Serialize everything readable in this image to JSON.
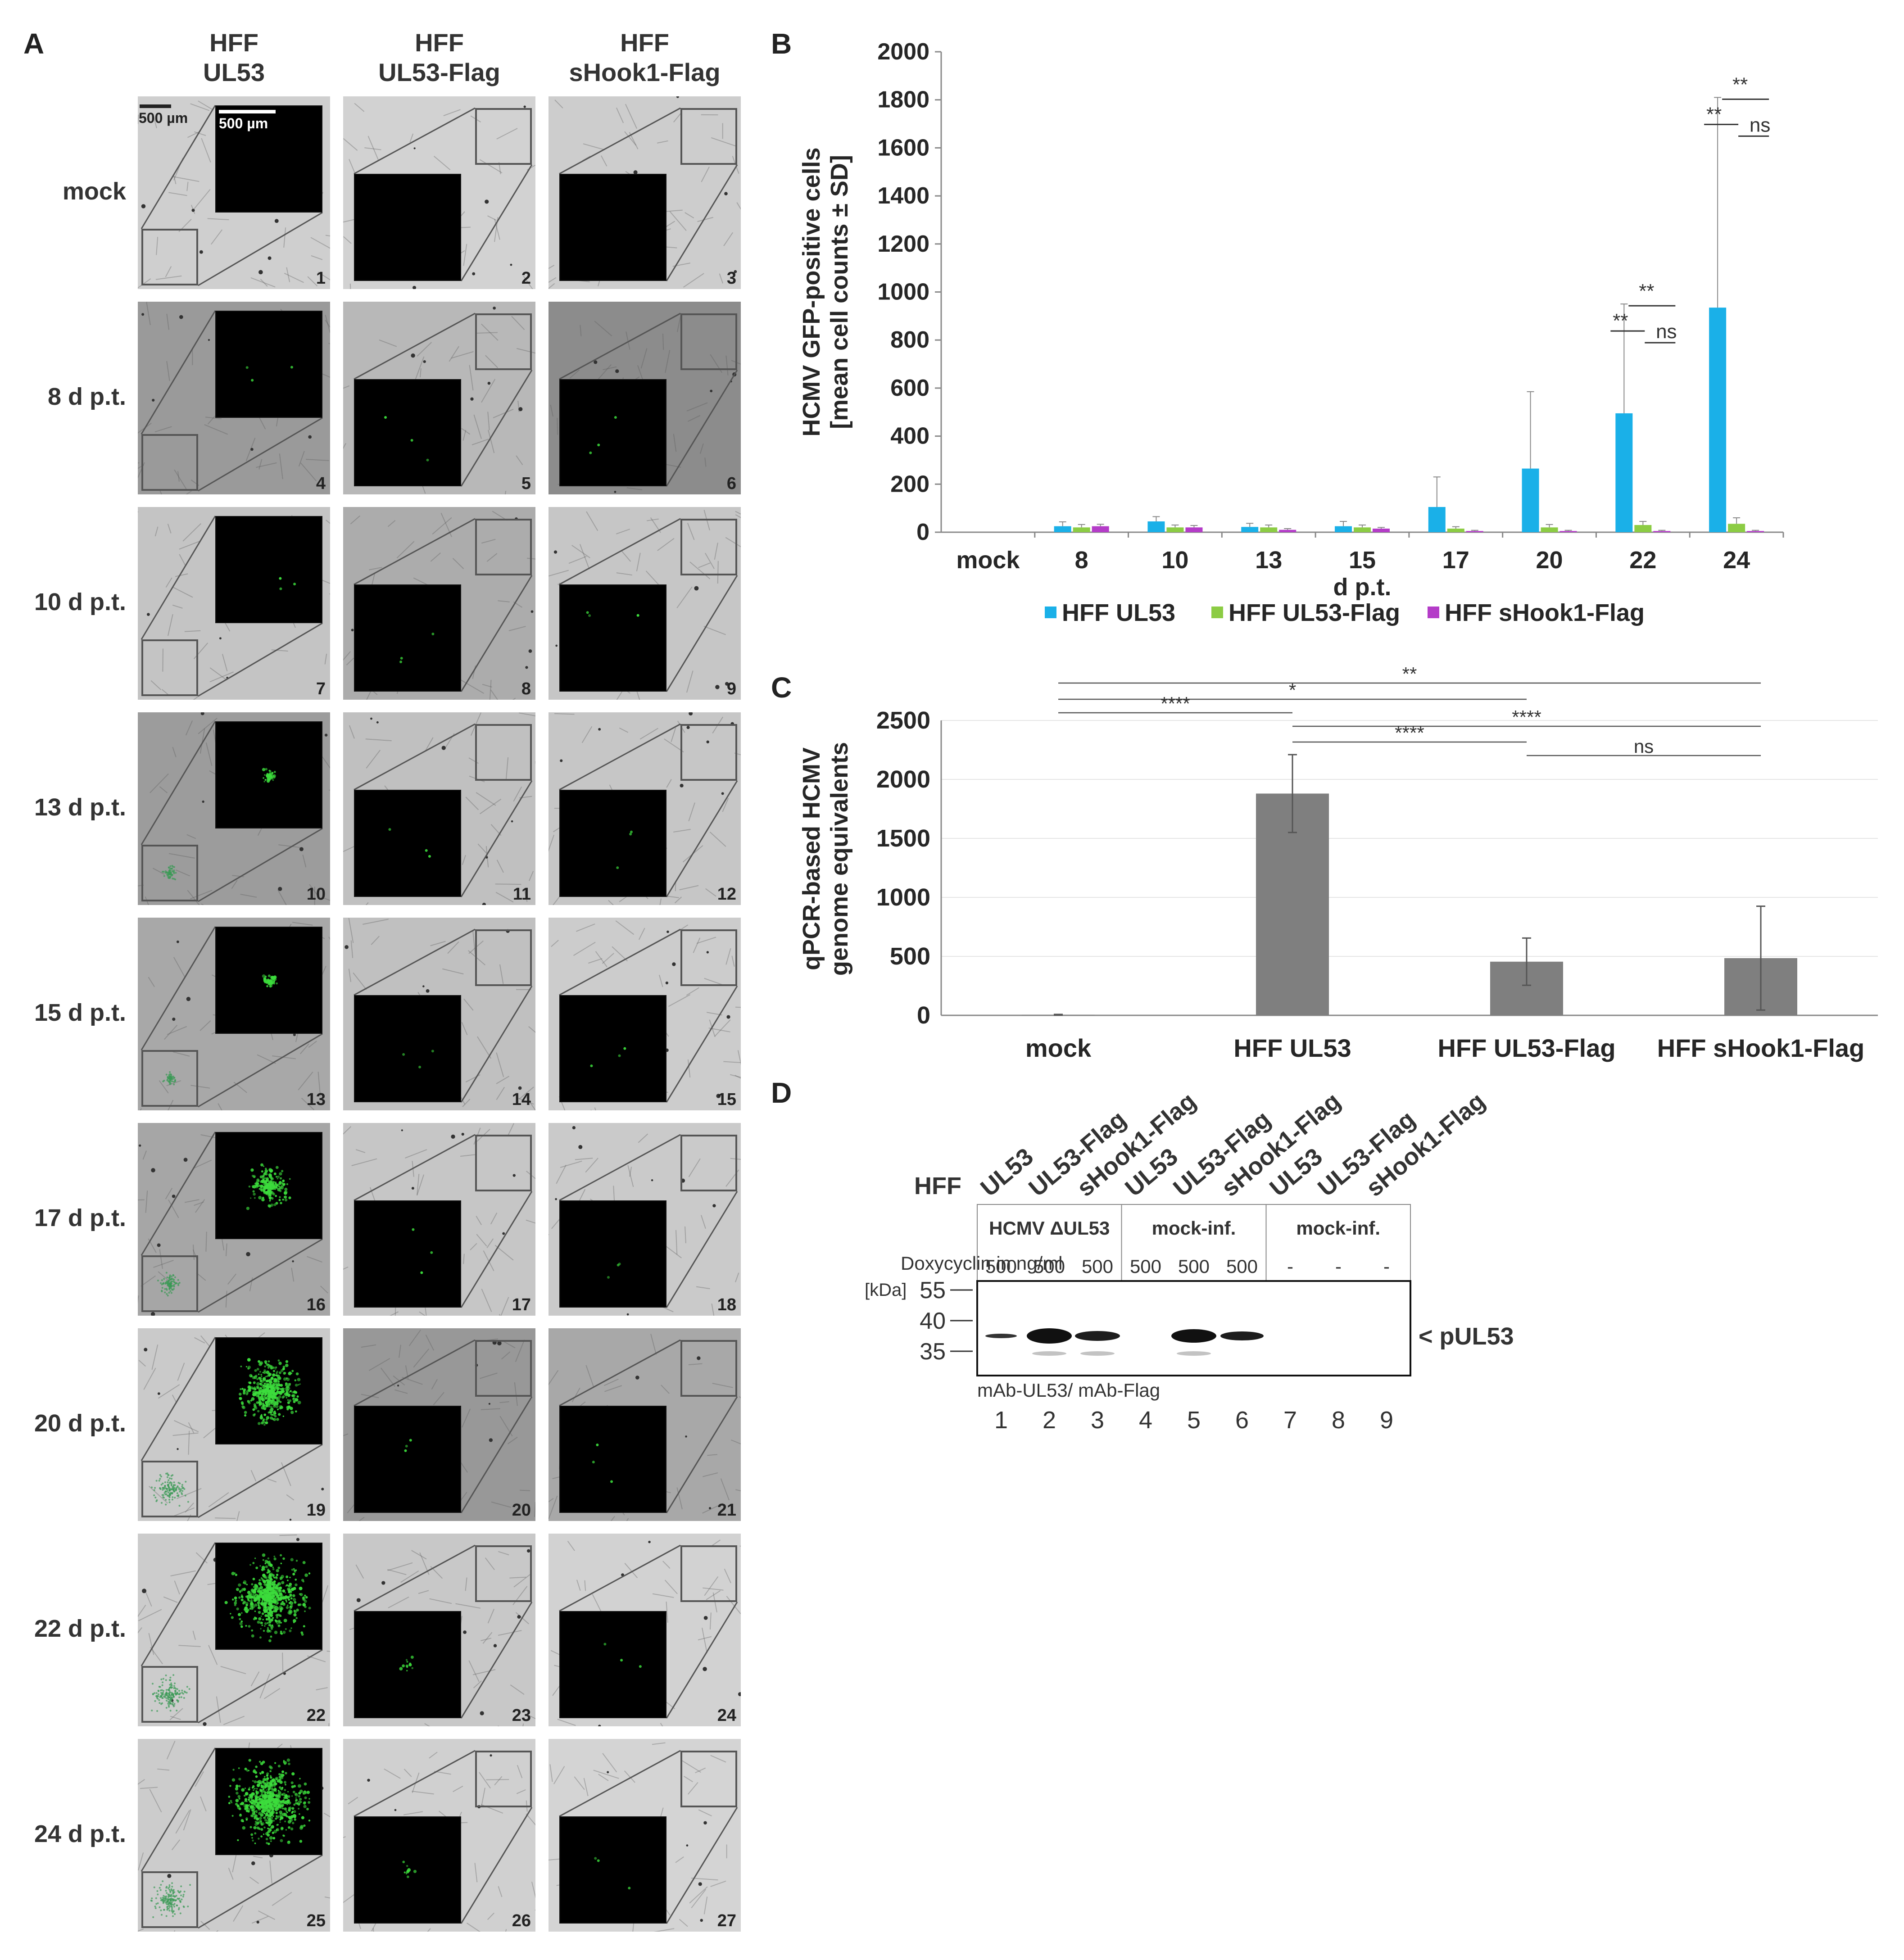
{
  "panel_a": {
    "letter": "A",
    "columns": [
      {
        "line1": "HFF",
        "line2": "UL53"
      },
      {
        "line1": "HFF",
        "line2": "UL53-Flag"
      },
      {
        "line1": "HFF",
        "line2": "sHook1-Flag"
      }
    ],
    "rows": [
      "mock",
      "8 d p.t.",
      "10 d p.t.",
      "13 d p.t.",
      "15 d p.t.",
      "17 d p.t.",
      "20 d p.t.",
      "22 d p.t.",
      "24 d p.t."
    ],
    "scale_bar_main": "500 µm",
    "scale_bar_inset": "500 µm",
    "tile_numbers": [
      "1",
      "2",
      "3",
      "4",
      "5",
      "6",
      "7",
      "8",
      "9",
      "10",
      "11",
      "12",
      "13",
      "14",
      "15",
      "16",
      "17",
      "18",
      "19",
      "20",
      "21",
      "22",
      "23",
      "24",
      "25",
      "26",
      "27"
    ],
    "green_color": "#3cdc3c"
  },
  "panel_b": {
    "letter": "B",
    "chart_data": {
      "type": "bar",
      "ylabel_line1": "HCMV GFP-positive cells",
      "ylabel_line2": "[mean cell counts ± SD]",
      "xlabel": "d p.t.",
      "ylim": [
        0,
        2000
      ],
      "yticks": [
        "0",
        "200",
        "400",
        "600",
        "800",
        "1000",
        "1200",
        "1400",
        "1600",
        "1800",
        "2000"
      ],
      "categories": [
        "mock",
        "8",
        "10",
        "13",
        "15",
        "17",
        "20",
        "22",
        "24"
      ],
      "series": [
        {
          "name": "HFF UL53",
          "color": "#1ab0e8",
          "values": [
            0,
            25,
            45,
            22,
            25,
            105,
            265,
            495,
            935
          ],
          "errors": [
            0,
            18,
            20,
            15,
            20,
            125,
            320,
            455,
            875
          ]
        },
        {
          "name": "HFF UL53-Flag",
          "color": "#8ccc44",
          "values": [
            0,
            20,
            20,
            20,
            20,
            15,
            20,
            30,
            35
          ],
          "errors": [
            0,
            12,
            10,
            10,
            10,
            8,
            12,
            15,
            25
          ]
        },
        {
          "name": "HFF sHook1-Flag",
          "color": "#b43cc8",
          "values": [
            0,
            25,
            20,
            10,
            15,
            5,
            5,
            5,
            5
          ],
          "errors": [
            0,
            8,
            8,
            5,
            5,
            3,
            3,
            3,
            3
          ]
        }
      ],
      "significance": [
        {
          "category": "22",
          "labels": [
            "**",
            "**",
            "ns"
          ]
        },
        {
          "category": "24",
          "labels": [
            "**",
            "**",
            "ns"
          ]
        }
      ],
      "legend_position": "bottom"
    }
  },
  "panel_c": {
    "letter": "C",
    "chart_data": {
      "type": "bar",
      "ylabel_line1": "qPCR-based HCMV",
      "ylabel_line2": "genome equivalents",
      "ylim": [
        0,
        2500
      ],
      "yticks": [
        "0",
        "500",
        "1000",
        "1500",
        "2000",
        "2500"
      ],
      "categories": [
        "mock",
        "HFF UL53",
        "HFF UL53-Flag",
        "HFF sHook1-Flag"
      ],
      "values": [
        5,
        1880,
        455,
        485
      ],
      "errors": [
        3,
        330,
        200,
        440
      ],
      "color": "#7f7f7f",
      "brackets": [
        {
          "from": 0,
          "to": 3,
          "label": "**"
        },
        {
          "from": 0,
          "to": 2,
          "label": "*"
        },
        {
          "from": 0,
          "to": 1,
          "label": "****"
        },
        {
          "from": 1,
          "to": 3,
          "label": "****"
        },
        {
          "from": 1,
          "to": 2,
          "label": "****"
        },
        {
          "from": 2,
          "to": 3,
          "label": "ns"
        }
      ]
    }
  },
  "panel_d": {
    "letter": "D",
    "hff_label": "HFF",
    "lane_labels": [
      "UL53",
      "UL53-Flag",
      "sHook1-Flag",
      "UL53",
      "UL53-Flag",
      "sHook1-Flag",
      "UL53",
      "UL53-Flag",
      "sHook1-Flag"
    ],
    "groups": [
      "HCMV ΔUL53",
      "mock-inf.",
      "mock-inf."
    ],
    "doxy_label": "Doxycyclin in ng/ml",
    "doxy_values": [
      "500",
      "500",
      "500",
      "500",
      "500",
      "500",
      "-",
      "-",
      "-"
    ],
    "kda_label": "[kDa]",
    "markers": [
      "55",
      "40",
      "35"
    ],
    "band_label": "< pUL53",
    "antibody_label": "mAb-UL53/ mAb-Flag",
    "lane_numbers": [
      "1",
      "2",
      "3",
      "4",
      "5",
      "6",
      "7",
      "8",
      "9"
    ]
  }
}
